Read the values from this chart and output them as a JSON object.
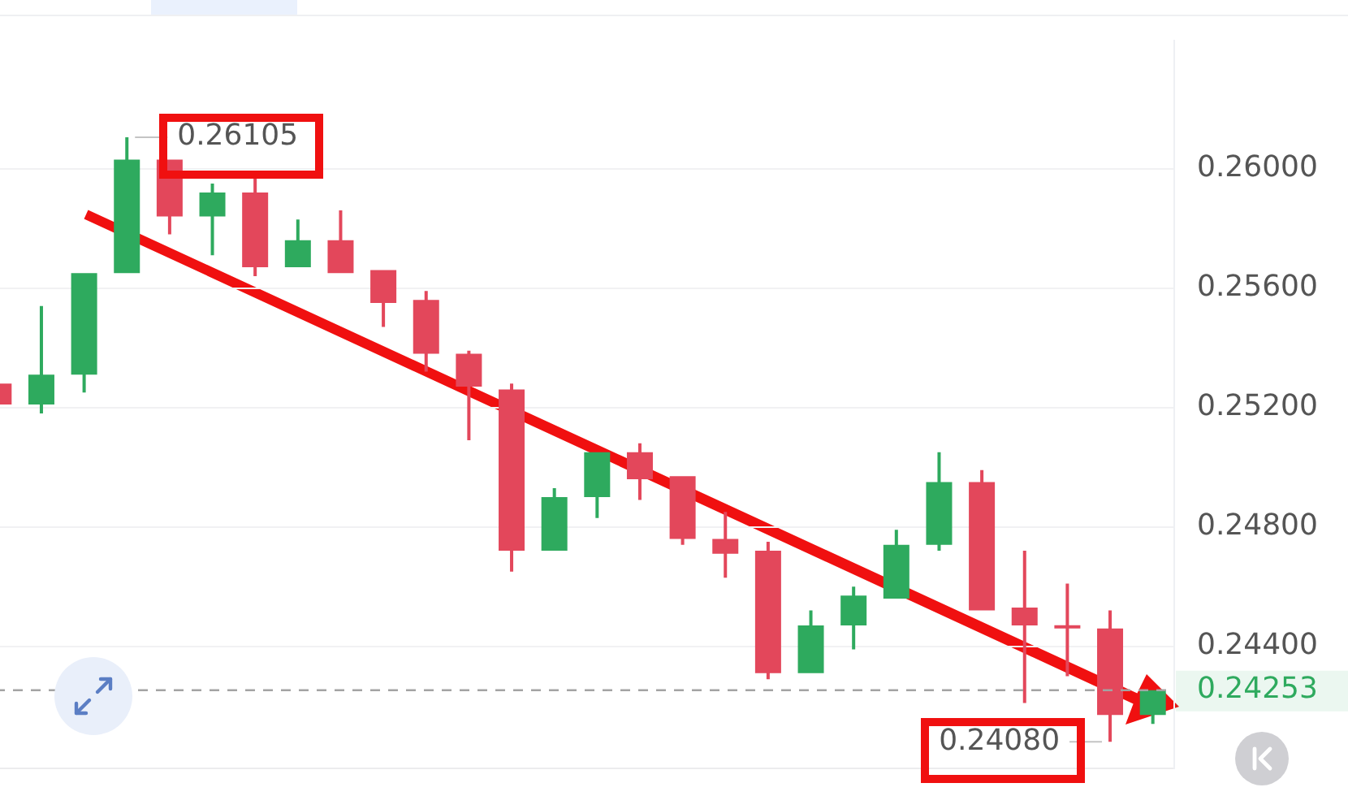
{
  "chart_data": {
    "type": "candlestick",
    "categories": [
      null,
      null,
      null,
      null,
      null,
      null,
      null,
      null,
      null,
      null,
      null,
      null,
      null,
      null,
      null,
      null,
      null,
      null,
      null,
      null,
      null,
      null,
      null,
      null,
      null,
      null,
      null,
      null
    ],
    "ohlc": [
      [
        0.2528,
        0.2528,
        0.2521,
        0.2521
      ],
      [
        0.2521,
        0.2554,
        0.2518,
        0.2531
      ],
      [
        0.2531,
        0.2565,
        0.2525,
        0.2565
      ],
      [
        0.2565,
        0.26105,
        0.2565,
        0.2603
      ],
      [
        0.2603,
        0.2603,
        0.2578,
        0.2584
      ],
      [
        0.2584,
        0.2595,
        0.2571,
        0.2592
      ],
      [
        0.2592,
        0.2597,
        0.2564,
        0.2567
      ],
      [
        0.2567,
        0.2583,
        0.2567,
        0.2576
      ],
      [
        0.2576,
        0.2586,
        0.2565,
        0.2565
      ],
      [
        0.2566,
        0.2566,
        0.2547,
        0.2555
      ],
      [
        0.2556,
        0.2559,
        0.2532,
        0.2538
      ],
      [
        0.2538,
        0.2539,
        0.2509,
        0.2527
      ],
      [
        0.2526,
        0.2528,
        0.2465,
        0.2472
      ],
      [
        0.2472,
        0.2493,
        0.2472,
        0.249
      ],
      [
        0.249,
        0.2505,
        0.2483,
        0.2505
      ],
      [
        0.2505,
        0.2508,
        0.2489,
        0.2496
      ],
      [
        0.2497,
        0.2497,
        0.2474,
        0.2476
      ],
      [
        0.2476,
        0.2485,
        0.2463,
        0.2471
      ],
      [
        0.2472,
        0.2475,
        0.2429,
        0.2431
      ],
      [
        0.2431,
        0.2452,
        0.2431,
        0.2447
      ],
      [
        0.2447,
        0.246,
        0.2439,
        0.2457
      ],
      [
        0.2456,
        0.2479,
        0.2456,
        0.2474
      ],
      [
        0.2474,
        0.2505,
        0.2472,
        0.2495
      ],
      [
        0.2495,
        0.2499,
        0.2452,
        0.2452
      ],
      [
        0.2453,
        0.2472,
        0.2421,
        0.2447
      ],
      [
        0.2447,
        0.2461,
        0.243,
        0.2446
      ],
      [
        0.2446,
        0.2452,
        0.2408,
        0.2417
      ],
      [
        0.2417,
        0.24253,
        0.2414,
        0.24253
      ]
    ],
    "colors": [
      "#e3475b",
      "#2eaa5e",
      "#2eaa5e",
      "#2eaa5e",
      "#e3475b",
      "#2eaa5e",
      "#e3475b",
      "#2eaa5e",
      "#e3475b",
      "#e3475b",
      "#e3475b",
      "#e3475b",
      "#e3475b",
      "#2eaa5e",
      "#2eaa5e",
      "#e3475b",
      "#e3475b",
      "#e3475b",
      "#e3475b",
      "#2eaa5e",
      "#2eaa5e",
      "#2eaa5e",
      "#2eaa5e",
      "#e3475b",
      "#e3475b",
      "#e3475b",
      "#e3475b",
      "#2eaa5e"
    ],
    "ylim": [
      0.2399,
      0.2643
    ],
    "yticks": [
      {
        "value": 0.244,
        "label": "0.24400"
      },
      {
        "value": 0.248,
        "label": "0.24800"
      },
      {
        "value": 0.252,
        "label": "0.25200"
      },
      {
        "value": 0.256,
        "label": "0.25600"
      },
      {
        "value": 0.26,
        "label": "0.26000"
      }
    ],
    "tick_labels": "y",
    "grid": "y",
    "ref_lines": [
      {
        "axis": "y",
        "value": 0.24253,
        "label": "0.24253",
        "color": "#a3a3a3",
        "line_style": "dashed"
      }
    ],
    "annotations": [
      "0.26105",
      "0.24080"
    ]
  }
}
